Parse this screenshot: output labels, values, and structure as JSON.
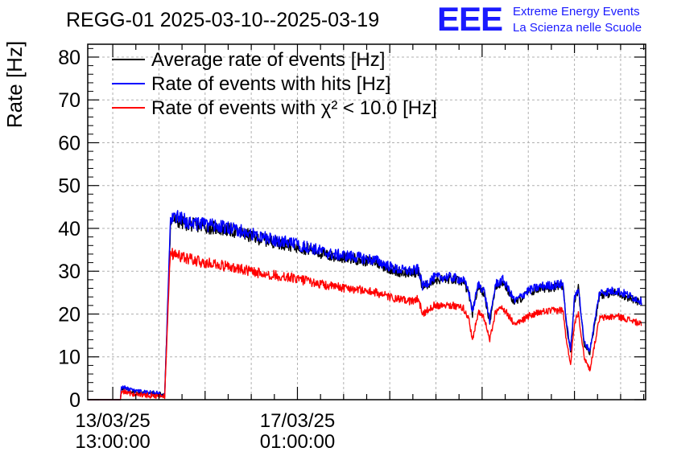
{
  "chart_data": {
    "type": "line",
    "title": "REGG-01 2025-03-10--2025-03-19",
    "ylabel": "Rate [Hz]",
    "xlabel": "",
    "ylim": [
      0,
      83
    ],
    "xlim_hours_from_start": [
      0,
      290
    ],
    "yticks": [
      0,
      10,
      20,
      30,
      40,
      50,
      60,
      70,
      80
    ],
    "ytick_labels": [
      "0",
      "10",
      "20",
      "30",
      "40",
      "50",
      "60",
      "70",
      "80"
    ],
    "xticks": [
      {
        "hour": 13,
        "line1": "13/03/25",
        "line2": "13:00:00"
      },
      {
        "hour": 109,
        "line1": "17/03/25",
        "line2": "01:00:00"
      }
    ],
    "grid": true,
    "legend_position": "top-left",
    "legend": [
      {
        "label": "Average rate of events [Hz]",
        "color": "#000000"
      },
      {
        "label": "Rate of events with hits [Hz]",
        "color": "#0000ff"
      },
      {
        "label": "Rate of events with χ² < 10.0 [Hz]",
        "color": "#ff0000"
      }
    ],
    "series": [
      {
        "name": "Average rate of events [Hz]",
        "color": "#000000",
        "x": [
          0,
          17,
          17.5,
          24,
          34,
          40,
          43,
          44,
          52,
          60,
          75,
          90,
          106,
          116,
          126,
          137,
          150,
          160,
          168,
          172,
          174,
          180,
          187,
          195,
          198,
          200,
          203,
          206,
          209,
          212,
          216,
          222,
          229,
          236,
          247,
          249,
          251,
          253,
          255,
          258,
          261,
          266,
          275,
          283,
          288
        ],
        "values": [
          0,
          0,
          2.8,
          1.8,
          1.3,
          1.1,
          41,
          42,
          41,
          40.5,
          39.5,
          37.5,
          36,
          35,
          33.5,
          33,
          32,
          30,
          29.5,
          30,
          26,
          28,
          28.2,
          27.5,
          25,
          20,
          26.5,
          25,
          18,
          26.5,
          27.5,
          22.5,
          25,
          26,
          26.5,
          17,
          11,
          23,
          26,
          13,
          11,
          24.5,
          25,
          23.5,
          22.5
        ]
      },
      {
        "name": "Rate of events with hits [Hz]",
        "color": "#0000ff",
        "x": [
          0,
          17,
          17.5,
          24,
          34,
          40,
          43,
          44,
          52,
          60,
          75,
          90,
          106,
          116,
          126,
          137,
          150,
          160,
          168,
          172,
          174,
          180,
          187,
          195,
          198,
          200,
          203,
          206,
          209,
          212,
          216,
          222,
          229,
          236,
          247,
          249,
          251,
          253,
          255,
          258,
          261,
          266,
          275,
          283,
          288
        ],
        "values": [
          0,
          0,
          3,
          2,
          1.5,
          1.3,
          42,
          43,
          41.5,
          41,
          40,
          38,
          36.5,
          35.5,
          34,
          33.5,
          32.5,
          30.5,
          30,
          30.5,
          26.5,
          28.5,
          28.7,
          28,
          25.5,
          20.5,
          27,
          25.5,
          18.5,
          27,
          28,
          23,
          25.5,
          26.5,
          27,
          17.5,
          11.5,
          23.5,
          26.5,
          13.5,
          11.5,
          25,
          25.5,
          24,
          23
        ]
      },
      {
        "name": "Rate of events with χ² < 10.0 [Hz]",
        "color": "#ff0000",
        "x": [
          0,
          17,
          17.5,
          24,
          34,
          40,
          43,
          44,
          52,
          60,
          75,
          90,
          106,
          116,
          126,
          137,
          150,
          160,
          168,
          172,
          174,
          180,
          187,
          195,
          198,
          200,
          203,
          206,
          209,
          212,
          216,
          222,
          229,
          236,
          247,
          249,
          251,
          253,
          255,
          258,
          261,
          266,
          275,
          283,
          288
        ],
        "values": [
          0,
          0,
          2,
          1.3,
          0.9,
          0.8,
          35.5,
          34,
          33,
          32,
          31,
          29.5,
          28.5,
          27.5,
          26.5,
          26,
          25,
          23.5,
          23,
          23.5,
          20,
          22,
          22.2,
          21.5,
          19,
          14,
          20.5,
          19,
          14,
          20.5,
          21.5,
          17.5,
          19.5,
          20.5,
          21,
          13,
          8.5,
          18,
          20.5,
          10,
          7,
          19,
          19.5,
          18.5,
          17.5
        ]
      }
    ]
  },
  "logo": {
    "mark": "EEE",
    "line1": "Extreme Energy Events",
    "line2": "La Scienza nelle Scuole"
  },
  "colors": {
    "logo_blue": "#1a1aff",
    "grid": "#b0b0b0"
  }
}
